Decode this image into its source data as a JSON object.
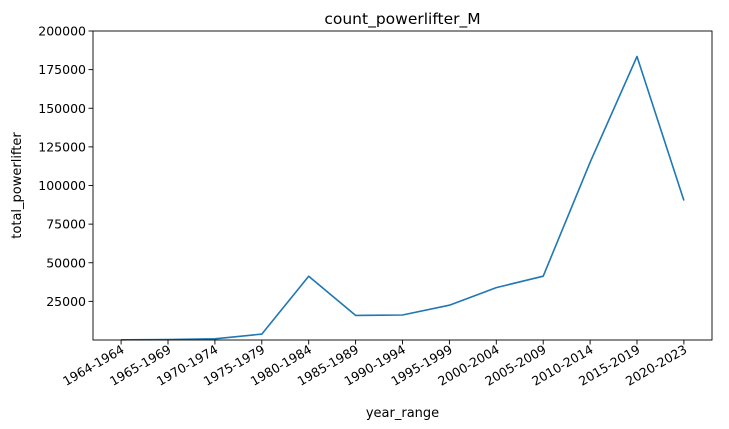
{
  "chart_data": {
    "type": "line",
    "title": "count_powerlifter_M",
    "xlabel": "year_range",
    "ylabel": "total_powerlifter",
    "categories": [
      "1964-1964",
      "1965-1969",
      "1970-1974",
      "1975-1979",
      "1980-1984",
      "1985-1989",
      "1990-1994",
      "1995-1999",
      "2000-2004",
      "2005-2009",
      "2010-2014",
      "2015-2019",
      "2020-2023"
    ],
    "series": [
      {
        "values": [
          100,
          300,
          800,
          3800,
          41300,
          15900,
          16200,
          22500,
          33900,
          41300,
          115000,
          183500,
          90300
        ]
      }
    ],
    "ylim": [
      0,
      200000
    ],
    "yticks": [
      25000,
      50000,
      75000,
      100000,
      125000,
      150000,
      175000,
      200000
    ],
    "grid": false,
    "legend": "none",
    "line_color": "#1f77b4"
  }
}
